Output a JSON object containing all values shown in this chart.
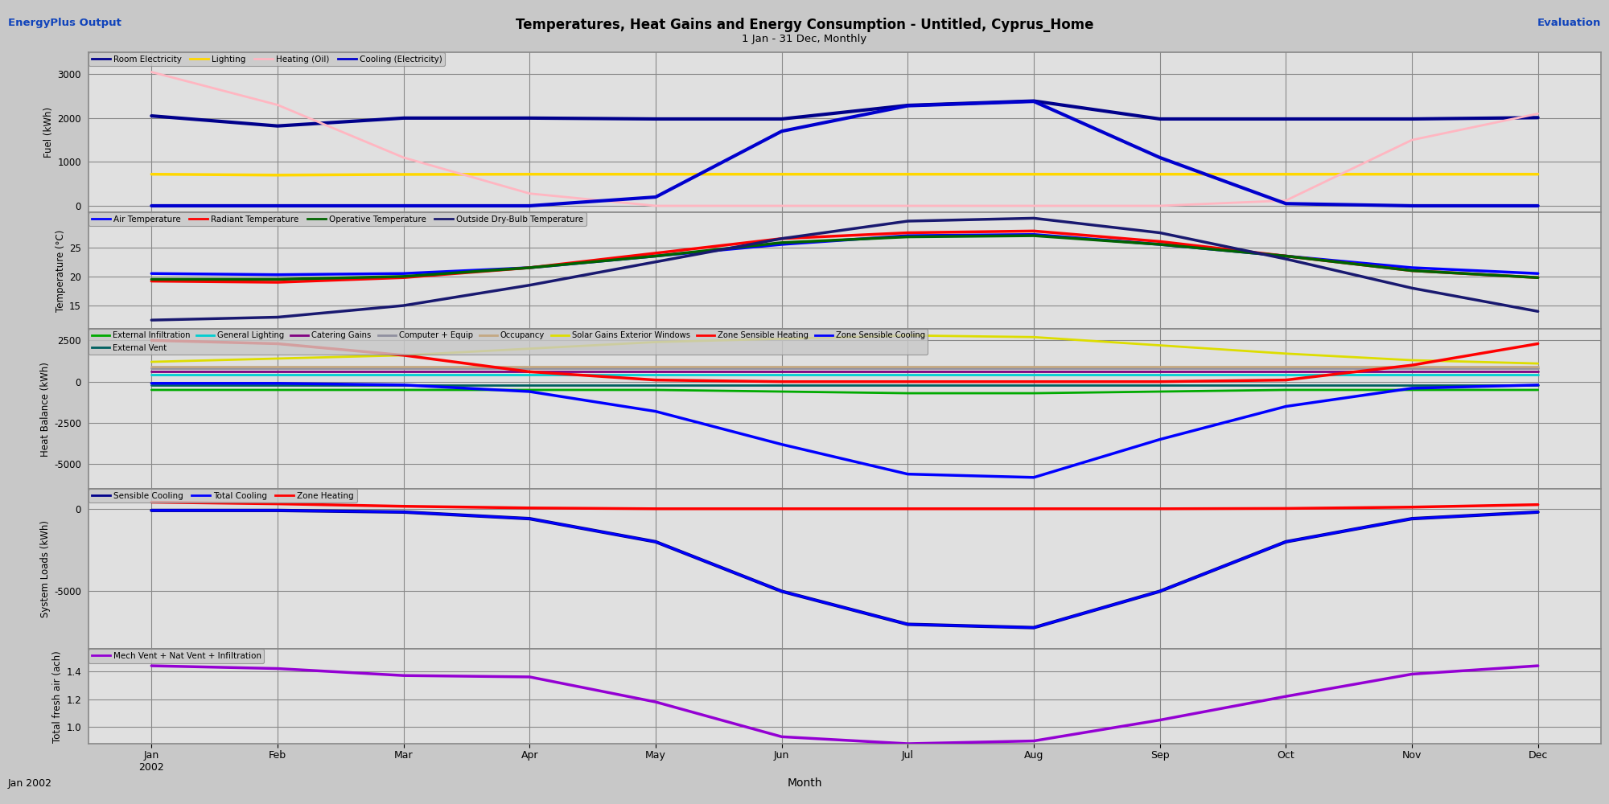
{
  "title": "Temperatures, Heat Gains and Energy Consumption - Untitled, Cyprus_Home",
  "subtitle": "1 Jan - 31 Dec, Monthly",
  "top_left": "EnergyPlus Output",
  "top_right": "Evaluation",
  "xlabel": "Month",
  "bottom_left": "Jan 2002",
  "panel1_ylabel": "Fuel (kWh)",
  "panel1_ylim": [
    -150,
    3500
  ],
  "panel1_yticks": [
    0,
    1000,
    2000,
    3000
  ],
  "panel1_series": [
    {
      "label": "Room Electricity",
      "color": "#00008B",
      "lw": 3.0,
      "y": [
        2050,
        1820,
        2000,
        2000,
        1980,
        1980,
        2290,
        2390,
        1980,
        1980,
        1980,
        2010
      ]
    },
    {
      "label": "Lighting",
      "color": "#FFD700",
      "lw": 2.5,
      "y": [
        720,
        700,
        715,
        720,
        720,
        720,
        720,
        720,
        720,
        720,
        720,
        720
      ]
    },
    {
      "label": "Heating (Oil)",
      "color": "#FFB6C1",
      "lw": 2.0,
      "y": [
        3050,
        2300,
        1100,
        280,
        0,
        0,
        0,
        0,
        0,
        120,
        1500,
        2100
      ]
    },
    {
      "label": "Cooling (Electricity)",
      "color": "#0000CD",
      "lw": 3.0,
      "y": [
        0,
        0,
        0,
        0,
        200,
        1700,
        2280,
        2380,
        1100,
        50,
        0,
        0
      ]
    }
  ],
  "panel2_ylabel": "Temperature (°C)",
  "panel2_ylim": [
    11,
    31
  ],
  "panel2_yticks": [
    15,
    20,
    25
  ],
  "panel2_series": [
    {
      "label": "Air Temperature",
      "color": "#0000FF",
      "lw": 2.5,
      "y": [
        20.5,
        20.3,
        20.5,
        21.5,
        23.5,
        25.5,
        27.0,
        27.2,
        25.5,
        23.5,
        21.5,
        20.5
      ]
    },
    {
      "label": "Radiant Temperature",
      "color": "#FF0000",
      "lw": 2.5,
      "y": [
        19.2,
        19.0,
        19.8,
        21.5,
        24.0,
        26.5,
        27.5,
        27.8,
        26.0,
        23.5,
        21.0,
        19.8
      ]
    },
    {
      "label": "Operative Temperature",
      "color": "#006400",
      "lw": 2.5,
      "y": [
        19.5,
        19.5,
        20.0,
        21.5,
        23.5,
        25.8,
        26.8,
        27.0,
        25.5,
        23.5,
        21.0,
        19.8
      ]
    },
    {
      "label": "Outside Dry-Bulb Temperature",
      "color": "#191970",
      "lw": 2.5,
      "y": [
        12.5,
        13.0,
        15.0,
        18.5,
        22.5,
        26.5,
        29.5,
        30.0,
        27.5,
        23.0,
        18.0,
        14.0
      ]
    }
  ],
  "panel3_ylabel": "Heat Balance (kWh)",
  "panel3_ylim": [
    -6500,
    3200
  ],
  "panel3_yticks": [
    -5000,
    -2500,
    0,
    2500
  ],
  "panel3_series": [
    {
      "label": "External Infiltration",
      "color": "#00AA00",
      "lw": 2.0,
      "y": [
        -500,
        -500,
        -500,
        -500,
        -500,
        -600,
        -700,
        -700,
        -600,
        -500,
        -500,
        -500
      ]
    },
    {
      "label": "External Vent",
      "color": "#006060",
      "lw": 2.0,
      "y": [
        -200,
        -200,
        -200,
        -200,
        -200,
        -200,
        -200,
        -200,
        -200,
        -200,
        -200,
        -200
      ]
    },
    {
      "label": "General Lighting",
      "color": "#00CED1",
      "lw": 2.0,
      "y": [
        400,
        400,
        400,
        400,
        400,
        400,
        400,
        400,
        400,
        400,
        400,
        400
      ]
    },
    {
      "label": "Catering Gains",
      "color": "#800080",
      "lw": 2.0,
      "y": [
        600,
        600,
        600,
        600,
        600,
        600,
        600,
        600,
        600,
        600,
        600,
        600
      ]
    },
    {
      "label": "Computer + Equip",
      "color": "#9090A0",
      "lw": 2.0,
      "y": [
        800,
        800,
        800,
        800,
        800,
        800,
        800,
        800,
        800,
        800,
        800,
        800
      ]
    },
    {
      "label": "Occupancy",
      "color": "#C4A882",
      "lw": 2.0,
      "y": [
        900,
        900,
        900,
        900,
        900,
        900,
        900,
        900,
        900,
        900,
        900,
        900
      ]
    },
    {
      "label": "Solar Gains Exterior Windows",
      "color": "#DDDD00",
      "lw": 2.0,
      "y": [
        1200,
        1400,
        1600,
        2000,
        2400,
        2600,
        2800,
        2700,
        2200,
        1700,
        1300,
        1100
      ]
    },
    {
      "label": "Zone Sensible Heating",
      "color": "#FF0000",
      "lw": 2.5,
      "y": [
        2500,
        2300,
        1600,
        600,
        100,
        0,
        0,
        0,
        0,
        100,
        1000,
        2300
      ]
    },
    {
      "label": "Zone Sensible Cooling",
      "color": "#0000FF",
      "lw": 2.5,
      "y": [
        -100,
        -100,
        -200,
        -600,
        -1800,
        -3800,
        -5600,
        -5800,
        -3500,
        -1500,
        -400,
        -200
      ]
    }
  ],
  "panel4_ylabel": "System Loads (kWh)",
  "panel4_ylim": [
    -8500,
    1200
  ],
  "panel4_yticks": [
    -5000,
    0
  ],
  "panel4_series": [
    {
      "label": "Sensible Cooling",
      "color": "#00008B",
      "lw": 3.0,
      "y": [
        -100,
        -100,
        -200,
        -600,
        -2000,
        -5000,
        -7000,
        -7200,
        -5000,
        -2000,
        -600,
        -200
      ]
    },
    {
      "label": "Total Cooling",
      "color": "#0000FF",
      "lw": 2.0,
      "y": [
        -100,
        -100,
        -200,
        -600,
        -2000,
        -5000,
        -7000,
        -7200,
        -5000,
        -2000,
        -600,
        -200
      ]
    },
    {
      "label": "Zone Heating",
      "color": "#FF0000",
      "lw": 2.5,
      "y": [
        400,
        300,
        150,
        50,
        0,
        0,
        0,
        0,
        0,
        20,
        100,
        250
      ]
    }
  ],
  "panel5_ylabel": "Total fresh air (ach)",
  "panel5_ylim": [
    0.88,
    1.56
  ],
  "panel5_yticks": [
    1.0,
    1.2,
    1.4
  ],
  "panel5_series": [
    {
      "label": "Mech Vent + Nat Vent + Infiltration",
      "color": "#9400D3",
      "lw": 2.5,
      "y": [
        1.44,
        1.42,
        1.37,
        1.36,
        1.18,
        0.93,
        0.88,
        0.9,
        1.05,
        1.22,
        1.38,
        1.44
      ]
    }
  ],
  "months_x": [
    0,
    1,
    2,
    3,
    4,
    5,
    6,
    7,
    8,
    9,
    10,
    11
  ],
  "months_labels": [
    "Jan\n2002",
    "Feb",
    "Mar",
    "Apr",
    "May",
    "Jun",
    "Jul",
    "Aug",
    "Sep",
    "Oct",
    "Nov",
    "Dec"
  ],
  "bg_color": "#C8C8C8",
  "plot_bg_color": "#E0E0E0",
  "grid_color": "#888888",
  "legend_bg": "#C8C8C8",
  "separator_color": "#888888",
  "title_color": "#000000",
  "header_color": "#1144BB"
}
